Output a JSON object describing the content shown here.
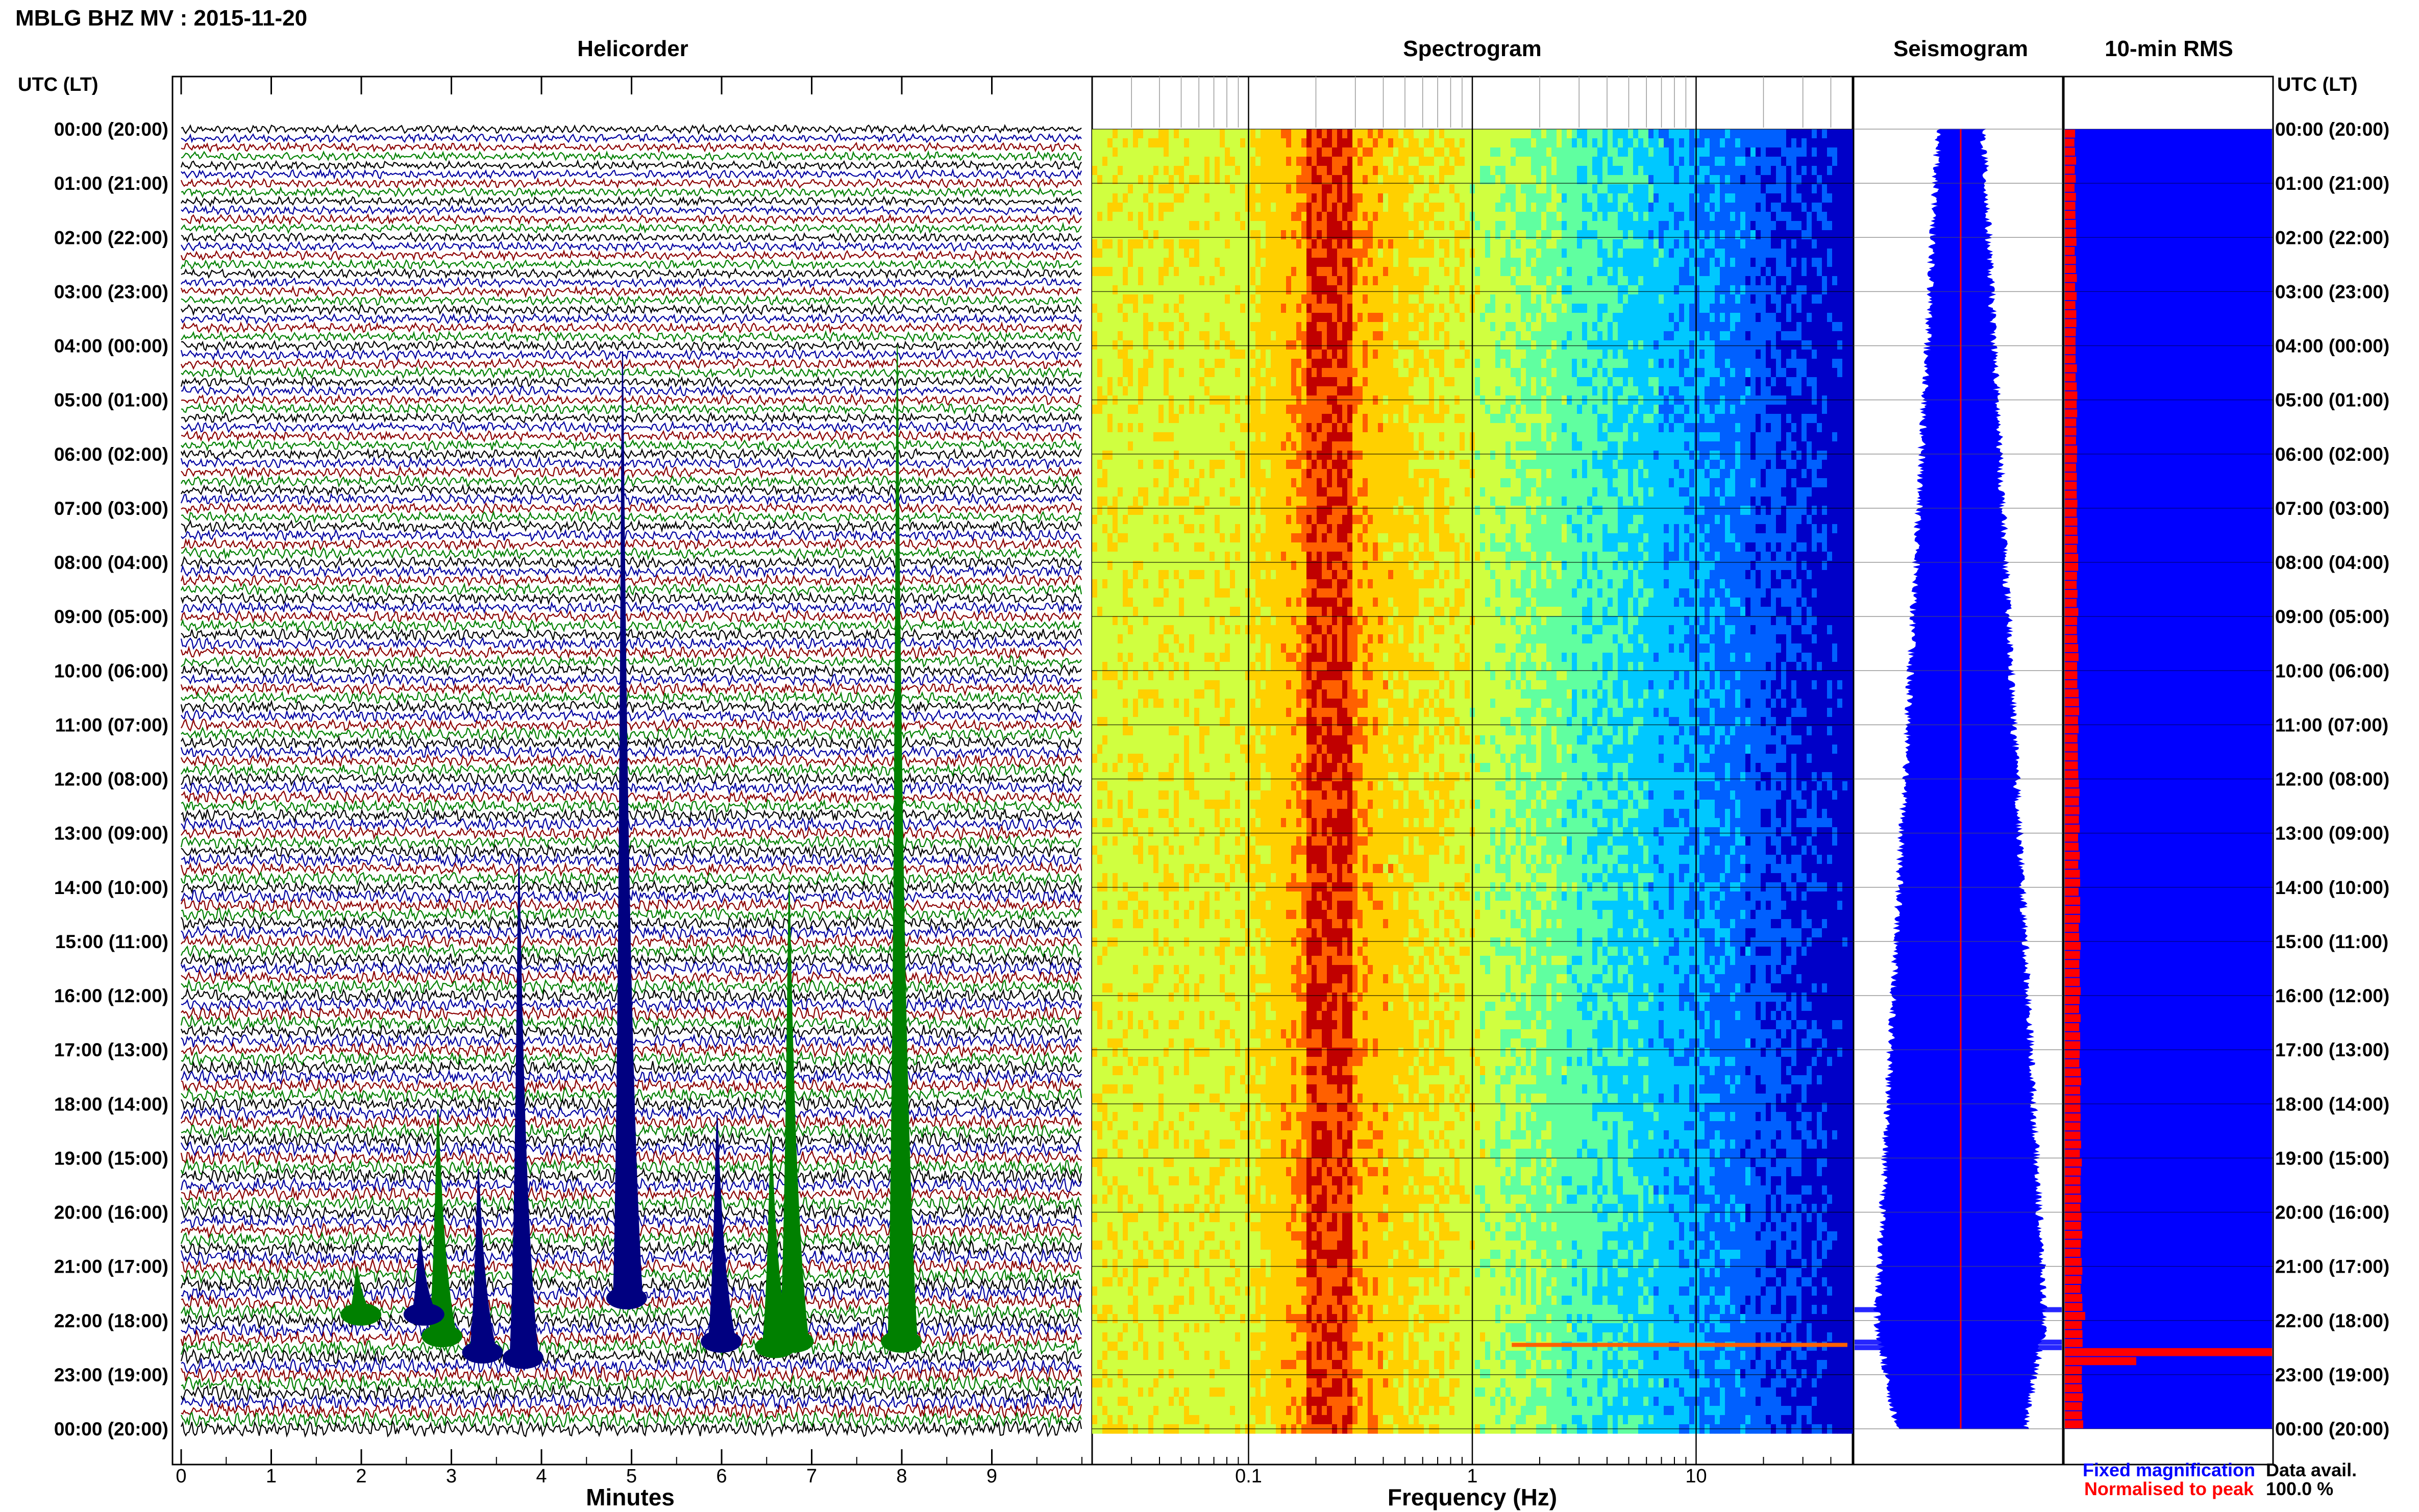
{
  "header": {
    "title": "MBLG BHZ MV : 2015-11-20"
  },
  "time_axis": {
    "left_header": "UTC (LT)",
    "right_header": "UTC (LT)",
    "labels": [
      "00:00 (20:00)",
      "01:00 (21:00)",
      "02:00 (22:00)",
      "03:00 (23:00)",
      "04:00 (00:00)",
      "05:00 (01:00)",
      "06:00 (02:00)",
      "07:00 (03:00)",
      "08:00 (04:00)",
      "09:00 (05:00)",
      "10:00 (06:00)",
      "11:00 (07:00)",
      "12:00 (08:00)",
      "13:00 (09:00)",
      "14:00 (10:00)",
      "15:00 (11:00)",
      "16:00 (12:00)",
      "17:00 (13:00)",
      "18:00 (14:00)",
      "19:00 (15:00)",
      "20:00 (16:00)",
      "21:00 (17:00)",
      "22:00 (18:00)",
      "23:00 (19:00)",
      "00:00 (20:00)"
    ]
  },
  "chart_data": [
    {
      "type": "line",
      "title": "Helicorder",
      "xlabel": "Minutes",
      "ylabel": "",
      "x_ticks": [
        "0",
        "1",
        "2",
        "3",
        "4",
        "5",
        "6",
        "7",
        "8",
        "9"
      ],
      "xlim": [
        0,
        10
      ],
      "rows_per_hour": 6,
      "trace_colors": [
        "#000000",
        "#0000a0",
        "#8b0000",
        "#008000"
      ],
      "events": [
        {
          "hour": 4.1,
          "minute": 4.9,
          "peak_height_hours": 17.6
        },
        {
          "hour": 4.0,
          "minute": 7.95,
          "peak_height_hours": 18.5
        },
        {
          "hour": 13.4,
          "minute": 3.75,
          "peak_height_hours": 9.4
        },
        {
          "hour": 13.9,
          "minute": 6.75,
          "peak_height_hours": 8.6
        },
        {
          "hour": 18.2,
          "minute": 5.95,
          "peak_height_hours": 4.3
        },
        {
          "hour": 18.1,
          "minute": 2.85,
          "peak_height_hours": 4.3
        },
        {
          "hour": 19.2,
          "minute": 3.3,
          "peak_height_hours": 3.5
        },
        {
          "hour": 18.6,
          "minute": 6.55,
          "peak_height_hours": 4.0
        },
        {
          "hour": 20.4,
          "minute": 2.65,
          "peak_height_hours": 1.6
        },
        {
          "hour": 21.0,
          "minute": 1.95,
          "peak_height_hours": 1.0
        }
      ]
    },
    {
      "type": "heatmap",
      "title": "Spectrogram",
      "xlabel": "Frequency (Hz)",
      "x_scale": "log",
      "x_ticks": [
        "0.1",
        "1",
        "10"
      ],
      "xlim": [
        0.02,
        50
      ],
      "ylim_hours": [
        0,
        24
      ],
      "dominant_band_hz": [
        0.18,
        0.28
      ],
      "colormap": [
        "#0000c8",
        "#0060ff",
        "#00c8ff",
        "#60ffa0",
        "#d0ff40",
        "#ffd000",
        "#ff6000",
        "#c00000"
      ]
    },
    {
      "type": "line",
      "title": "Seismogram",
      "ylim_hours": [
        0,
        24
      ],
      "events_hours": [
        21.8,
        22.4,
        22.5
      ]
    },
    {
      "type": "bar",
      "title": "10-min RMS",
      "ylim_hours": [
        0,
        24
      ],
      "bin_minutes": 10,
      "peak_hour": 22.45
    }
  ],
  "legend": {
    "fixed_label": "Fixed magnification",
    "normalised_label": "Normalised to peak",
    "fixed_color": "#0000ff",
    "normalised_color": "#ff0000"
  },
  "availability": {
    "label": "Data avail.",
    "value": "100.0 %"
  }
}
